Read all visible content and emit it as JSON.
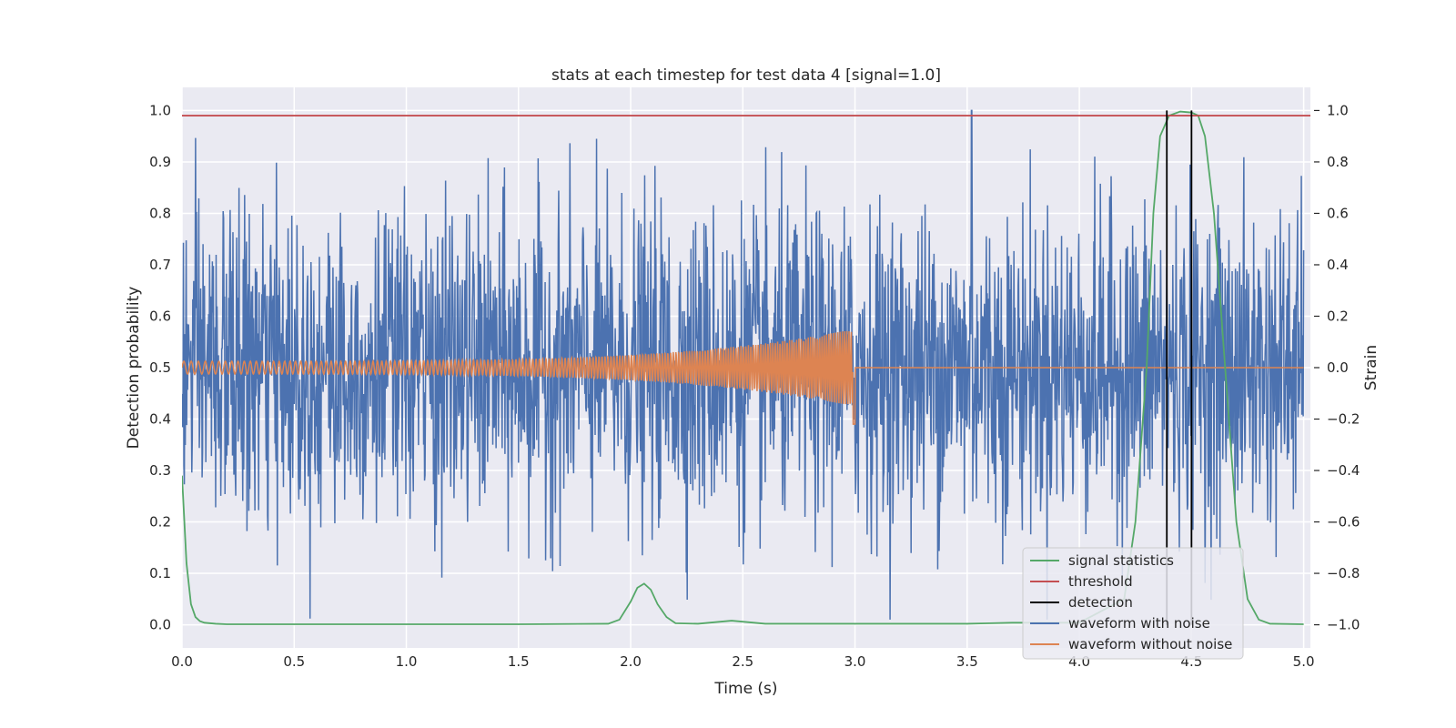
{
  "chart_data": {
    "type": "line",
    "title": "stats at each timestep for test data 4 [signal=1.0]",
    "xlabel": "Time (s)",
    "ylabel_left": "Detection probability",
    "ylabel_right": "Strain",
    "xlim": [
      0.0,
      5.03
    ],
    "ylim_left": [
      -0.045,
      1.045
    ],
    "ylim_right": [
      -1.09,
      1.09
    ],
    "x_ticks": [
      "0.0",
      "0.5",
      "1.0",
      "1.5",
      "2.0",
      "2.5",
      "3.0",
      "3.5",
      "4.0",
      "4.5",
      "5.0"
    ],
    "y_left_ticks": [
      "0.0",
      "0.1",
      "0.2",
      "0.3",
      "0.4",
      "0.5",
      "0.6",
      "0.7",
      "0.8",
      "0.9",
      "1.0"
    ],
    "y_right_ticks": [
      "−1.0",
      "−0.8",
      "−0.6",
      "−0.4",
      "−0.2",
      "0.0",
      "0.2",
      "0.4",
      "0.6",
      "0.8",
      "1.0"
    ],
    "grid": true,
    "legend_position": "lower right",
    "series": [
      {
        "name": "signal statistics",
        "axis": "left",
        "color": "#55a868",
        "x": [
          0.0,
          0.02,
          0.04,
          0.06,
          0.08,
          0.1,
          0.15,
          0.2,
          0.5,
          1.0,
          1.5,
          1.9,
          1.95,
          2.0,
          2.03,
          2.06,
          2.09,
          2.12,
          2.16,
          2.2,
          2.3,
          2.4,
          2.45,
          2.5,
          2.6,
          3.0,
          3.5,
          3.6,
          3.7,
          4.0,
          4.2,
          4.25,
          4.3,
          4.33,
          4.36,
          4.4,
          4.45,
          4.5,
          4.53,
          4.56,
          4.6,
          4.65,
          4.7,
          4.75,
          4.8,
          4.85,
          5.0
        ],
        "values": [
          0.29,
          0.12,
          0.04,
          0.015,
          0.007,
          0.004,
          0.002,
          0.001,
          0.001,
          0.001,
          0.001,
          0.002,
          0.01,
          0.045,
          0.072,
          0.08,
          0.068,
          0.04,
          0.015,
          0.003,
          0.002,
          0.006,
          0.008,
          0.006,
          0.002,
          0.002,
          0.002,
          0.003,
          0.004,
          0.004,
          0.05,
          0.2,
          0.5,
          0.8,
          0.95,
          0.99,
          0.998,
          0.996,
          0.99,
          0.95,
          0.8,
          0.5,
          0.2,
          0.05,
          0.01,
          0.002,
          0.001
        ]
      },
      {
        "name": "threshold",
        "axis": "left",
        "color": "#c44e52",
        "x": [
          0.0,
          5.03
        ],
        "values": [
          0.99,
          0.99
        ]
      },
      {
        "name": "detection",
        "axis": "left",
        "color": "#000000",
        "events": [
          4.39,
          4.5
        ],
        "range": [
          0.0,
          1.0
        ]
      },
      {
        "name": "waveform with noise",
        "axis": "right",
        "color": "#4c72b0",
        "x_range": [
          0.0,
          5.0
        ],
        "typical_amplitude": 0.3,
        "peak_min": -0.98,
        "peak_max": 1.0,
        "peak_max_time": 3.52
      },
      {
        "name": "waveform without noise",
        "axis": "right",
        "color": "#dd8452",
        "x_range": [
          0.0,
          5.0
        ],
        "chirp_end": 3.0,
        "amplitude_start": 0.025,
        "amplitude_end": 0.15,
        "min_value": -0.22,
        "max_value": 0.15
      }
    ]
  }
}
